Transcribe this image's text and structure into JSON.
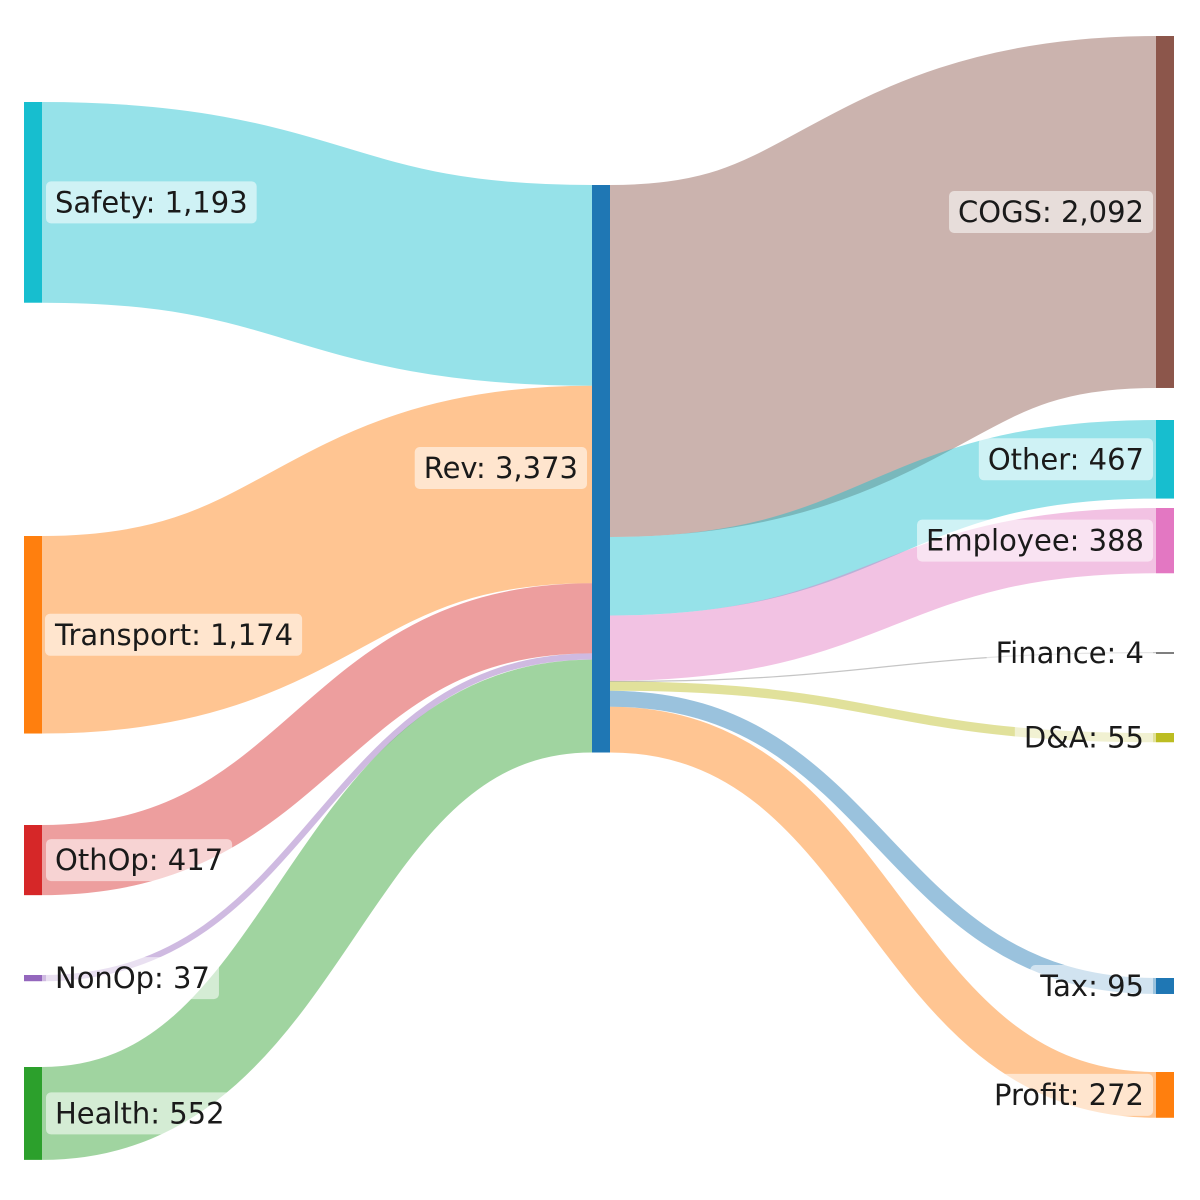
{
  "chart_data": {
    "type": "sankey",
    "value_format": "thousands-separator",
    "nodes": [
      {
        "id": "safety",
        "label": "Safety",
        "value": 1193,
        "column": 0,
        "color": "#17becf"
      },
      {
        "id": "transport",
        "label": "Transport",
        "value": 1174,
        "column": 0,
        "color": "#ff7f0e"
      },
      {
        "id": "othop",
        "label": "OthOp",
        "value": 417,
        "column": 0,
        "color": "#d62728"
      },
      {
        "id": "nonop",
        "label": "NonOp",
        "value": 37,
        "column": 0,
        "color": "#9467bd"
      },
      {
        "id": "health",
        "label": "Health",
        "value": 552,
        "column": 0,
        "color": "#2ca02c"
      },
      {
        "id": "rev",
        "label": "Rev",
        "value": 3373,
        "column": 1,
        "color": "#1f77b4"
      },
      {
        "id": "cogs",
        "label": "COGS",
        "value": 2092,
        "column": 2,
        "color": "#8c564b"
      },
      {
        "id": "other",
        "label": "Other",
        "value": 467,
        "column": 2,
        "color": "#17becf"
      },
      {
        "id": "employee",
        "label": "Employee",
        "value": 388,
        "column": 2,
        "color": "#e377c2"
      },
      {
        "id": "finance",
        "label": "Finance",
        "value": 4,
        "column": 2,
        "color": "#7f7f7f"
      },
      {
        "id": "da",
        "label": "D&A",
        "value": 55,
        "column": 2,
        "color": "#bcbd22"
      },
      {
        "id": "tax",
        "label": "Tax",
        "value": 95,
        "column": 2,
        "color": "#1f77b4"
      },
      {
        "id": "profit",
        "label": "Profit",
        "value": 272,
        "column": 2,
        "color": "#ff7f0e"
      }
    ],
    "links": [
      {
        "source": "safety",
        "target": "rev",
        "value": 1193
      },
      {
        "source": "transport",
        "target": "rev",
        "value": 1174
      },
      {
        "source": "othop",
        "target": "rev",
        "value": 417
      },
      {
        "source": "nonop",
        "target": "rev",
        "value": 37
      },
      {
        "source": "health",
        "target": "rev",
        "value": 552
      },
      {
        "source": "rev",
        "target": "cogs",
        "value": 2092
      },
      {
        "source": "rev",
        "target": "other",
        "value": 467
      },
      {
        "source": "rev",
        "target": "employee",
        "value": 388
      },
      {
        "source": "rev",
        "target": "finance",
        "value": 4
      },
      {
        "source": "rev",
        "target": "da",
        "value": 55
      },
      {
        "source": "rev",
        "target": "tax",
        "value": 95
      },
      {
        "source": "rev",
        "target": "profit",
        "value": 272
      }
    ]
  }
}
